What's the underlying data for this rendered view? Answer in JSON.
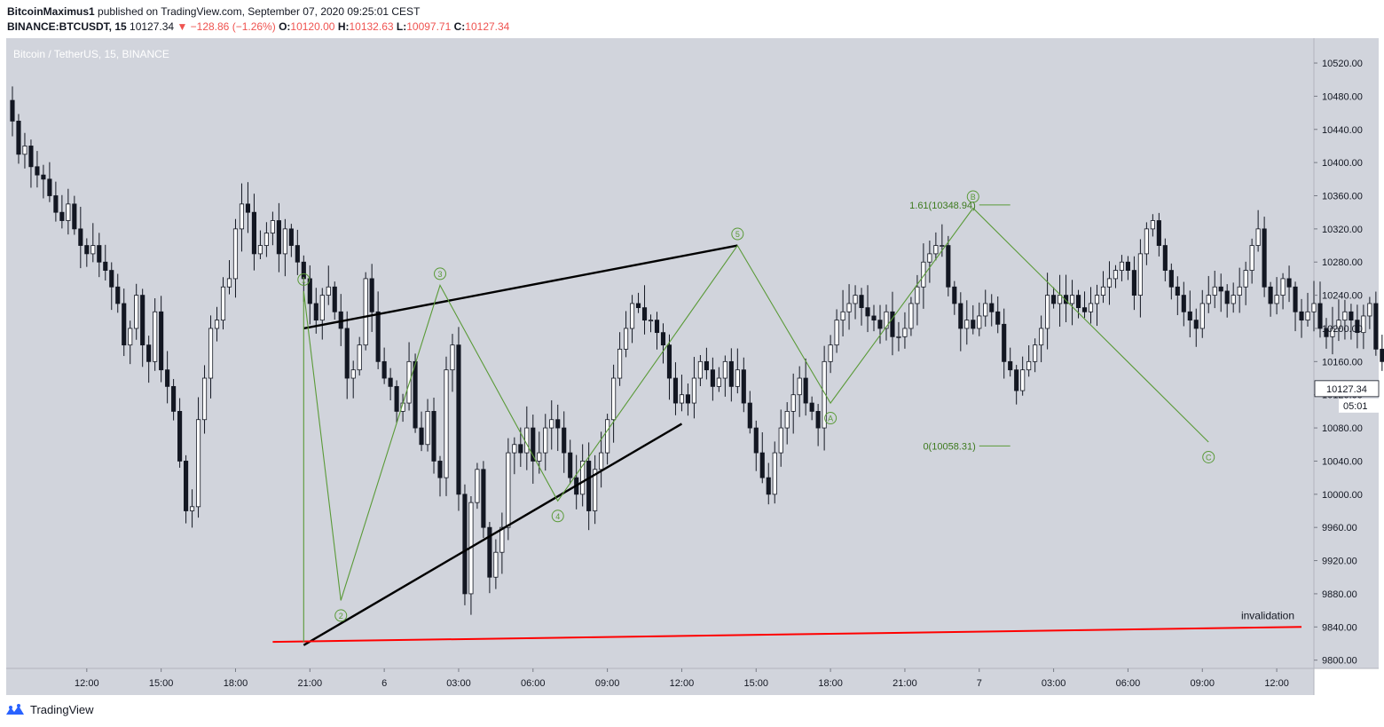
{
  "header": {
    "author": "BitcoinMaximus1",
    "published": "published on TradingView.com, September 07, 2020 09:25:01 CEST",
    "symbol": "BINANCE:BTCUSDT, 15",
    "last": "10127.34",
    "change": "▼ −128.86 (−1.26%)",
    "o_label": "O:",
    "o": "10120.00",
    "h_label": "H:",
    "h": "10132.63",
    "l_label": "L:",
    "l": "10097.71",
    "c_label": "C:",
    "c": "10127.34"
  },
  "footer": {
    "brand": "TradingView",
    "logo_icon": "tradingview-logo-icon"
  },
  "colors": {
    "plot_bg": "#d1d4dc",
    "bull_body": "#ffffff",
    "bear_body": "#131722",
    "wick": "#131722",
    "wave": "#5a9a38",
    "trendline": "#000000",
    "invalidation": "#ff0000"
  },
  "chart_data": {
    "type": "candlestick",
    "title": "Bitcoin / TetherUS, 15, BINANCE",
    "y_axis": {
      "range": [
        9790,
        10550
      ],
      "ticks": [
        9800,
        9840,
        9880,
        9920,
        9960,
        10000,
        10040,
        10080,
        10120,
        10160,
        10200,
        10240,
        10280,
        10320,
        10360,
        10400,
        10440,
        10480,
        10520
      ],
      "tick_labels": [
        "9800.00",
        "9840.00",
        "9880.00",
        "9920.00",
        "9960.00",
        "10000.00",
        "10040.00",
        "10080.00",
        "10120.00",
        "10160.00",
        "10200.00",
        "10240.00",
        "10280.00",
        "10320.00",
        "10360.00",
        "10400.00",
        "10440.00",
        "10480.00",
        "10520.00"
      ]
    },
    "x_axis": {
      "range": [
        "2020-09-05 08:45",
        "2020-09-07 13:30"
      ],
      "ticks": [
        {
          "time": "2020-09-05 12:00",
          "label": "12:00"
        },
        {
          "time": "2020-09-05 15:00",
          "label": "15:00"
        },
        {
          "time": "2020-09-05 18:00",
          "label": "18:00"
        },
        {
          "time": "2020-09-05 21:00",
          "label": "21:00"
        },
        {
          "time": "2020-09-06 00:00",
          "label": "6"
        },
        {
          "time": "2020-09-06 03:00",
          "label": "03:00"
        },
        {
          "time": "2020-09-06 06:00",
          "label": "06:00"
        },
        {
          "time": "2020-09-06 09:00",
          "label": "09:00"
        },
        {
          "time": "2020-09-06 12:00",
          "label": "12:00"
        },
        {
          "time": "2020-09-06 15:00",
          "label": "15:00"
        },
        {
          "time": "2020-09-06 18:00",
          "label": "18:00"
        },
        {
          "time": "2020-09-06 21:00",
          "label": "21:00"
        },
        {
          "time": "2020-09-07 00:00",
          "label": "7"
        },
        {
          "time": "2020-09-07 03:00",
          "label": "03:00"
        },
        {
          "time": "2020-09-07 06:00",
          "label": "06:00"
        },
        {
          "time": "2020-09-07 09:00",
          "label": "09:00"
        },
        {
          "time": "2020-09-07 12:00",
          "label": "12:00"
        }
      ]
    },
    "grid": false,
    "series": [
      {
        "name": "BTCUSDT",
        "interval_minutes": 15,
        "start": "2020-09-05 09:00",
        "close": [
          10450,
          10410,
          10420,
          10395,
          10385,
          10380,
          10360,
          10340,
          10330,
          10350,
          10320,
          10300,
          10290,
          10300,
          10280,
          10270,
          10250,
          10230,
          10180,
          10200,
          10240,
          10180,
          10160,
          10220,
          10150,
          10130,
          10100,
          10040,
          9980,
          9985,
          10090,
          10140,
          10200,
          10210,
          10250,
          10260,
          10320,
          10350,
          10340,
          10290,
          10300,
          10315,
          10330,
          10290,
          10320,
          10300,
          10280,
          10260,
          10230,
          10210,
          10240,
          10250,
          10220,
          10200,
          10140,
          10150,
          10180,
          10260,
          10220,
          10160,
          10140,
          10130,
          10100,
          10110,
          10160,
          10080,
          10060,
          10100,
          10040,
          10020,
          10150,
          10180,
          10000,
          9880,
          9990,
          10030,
          9960,
          9900,
          9930,
          9960,
          10050,
          10060,
          10050,
          10080,
          10040,
          10050,
          10080,
          10090,
          10080,
          10050,
          10020,
          10000,
          10040,
          9980,
          10030,
          10050,
          10090,
          10140,
          10175,
          10200,
          10230,
          10225,
          10210,
          10210,
          10195,
          10180,
          10140,
          10110,
          10120,
          10110,
          10140,
          10160,
          10150,
          10130,
          10140,
          10160,
          10130,
          10150,
          10110,
          10080,
          10050,
          10020,
          10000,
          10050,
          10080,
          10100,
          10120,
          10140,
          10110,
          10100,
          10080,
          10160,
          10180,
          10210,
          10220,
          10230,
          10240,
          10225,
          10215,
          10210,
          10200,
          10220,
          10190,
          10190,
          10200,
          10230,
          10250,
          10280,
          10290,
          10300,
          10300,
          10250,
          10230,
          10200,
          10210,
          10200,
          10215,
          10230,
          10220,
          10205,
          10160,
          10150,
          10125,
          10150,
          10160,
          10180,
          10200,
          10240,
          10230,
          10240,
          10230,
          10240,
          10225,
          10220,
          10230,
          10240,
          10250,
          10260,
          10270,
          10280,
          10270,
          10240,
          10290,
          10320,
          10330,
          10300,
          10270,
          10250,
          10240,
          10220,
          10210,
          10200,
          10230,
          10240,
          10250,
          10245,
          10230,
          10240,
          10250,
          10270,
          10300,
          10320,
          10250,
          10230,
          10240,
          10260,
          10250,
          10220,
          10210,
          10220,
          10230,
          10200,
          10190,
          10200,
          10210,
          10220,
          10210,
          10195,
          10215,
          10230,
          10175,
          10160,
          10140,
          10150,
          10165,
          10100,
          10080,
          10060,
          10090,
          10110,
          10127.34
        ]
      }
    ],
    "elliott_wave_impulse": {
      "labels": [
        "1",
        "2",
        "3",
        "4",
        "5"
      ],
      "points": [
        {
          "time": "2020-09-05 20:45",
          "price": 9822
        },
        {
          "time": "2020-09-05 20:45",
          "price": 10245,
          "label": "1"
        },
        {
          "time": "2020-09-05 22:15",
          "price": 9872,
          "label": "2"
        },
        {
          "time": "2020-09-06 02:15",
          "price": 10252,
          "label": "3"
        },
        {
          "time": "2020-09-06 07:00",
          "price": 9992,
          "label": "4"
        },
        {
          "time": "2020-09-06 14:15",
          "price": 10300,
          "label": "5"
        }
      ]
    },
    "elliott_wave_correction": {
      "labels": [
        "A",
        "B",
        "C"
      ],
      "points": [
        {
          "time": "2020-09-06 14:15",
          "price": 10300
        },
        {
          "time": "2020-09-06 18:00",
          "price": 10110,
          "label": "A"
        },
        {
          "time": "2020-09-06 23:45",
          "price": 10345,
          "label": "B"
        },
        {
          "time": "2020-09-07 09:15",
          "price": 10063,
          "label": "C"
        }
      ]
    },
    "fibonacci_levels": [
      {
        "label": "1.61(10348.94)",
        "price": 10348.94,
        "from": "2020-09-07 00:00",
        "to": "2020-09-07 01:15"
      },
      {
        "label": "0(10058.31)",
        "price": 10058.31,
        "from": "2020-09-07 00:00",
        "to": "2020-09-07 01:15"
      }
    ],
    "trendlines": [
      {
        "kind": "upper",
        "from": {
          "time": "2020-09-05 20:45",
          "price": 10200
        },
        "to": {
          "time": "2020-09-06 14:15",
          "price": 10300
        }
      },
      {
        "kind": "lower",
        "from": {
          "time": "2020-09-05 20:45",
          "price": 9818
        },
        "to": {
          "time": "2020-09-06 12:00",
          "price": 10085
        }
      },
      {
        "kind": "invalidation",
        "label": "invalidation",
        "from": {
          "time": "2020-09-05 19:30",
          "price": 9822
        },
        "to": {
          "time": "2020-09-07 13:00",
          "price": 9840
        }
      }
    ],
    "price_label": {
      "value": "10127.34",
      "countdown": "05:01"
    }
  }
}
